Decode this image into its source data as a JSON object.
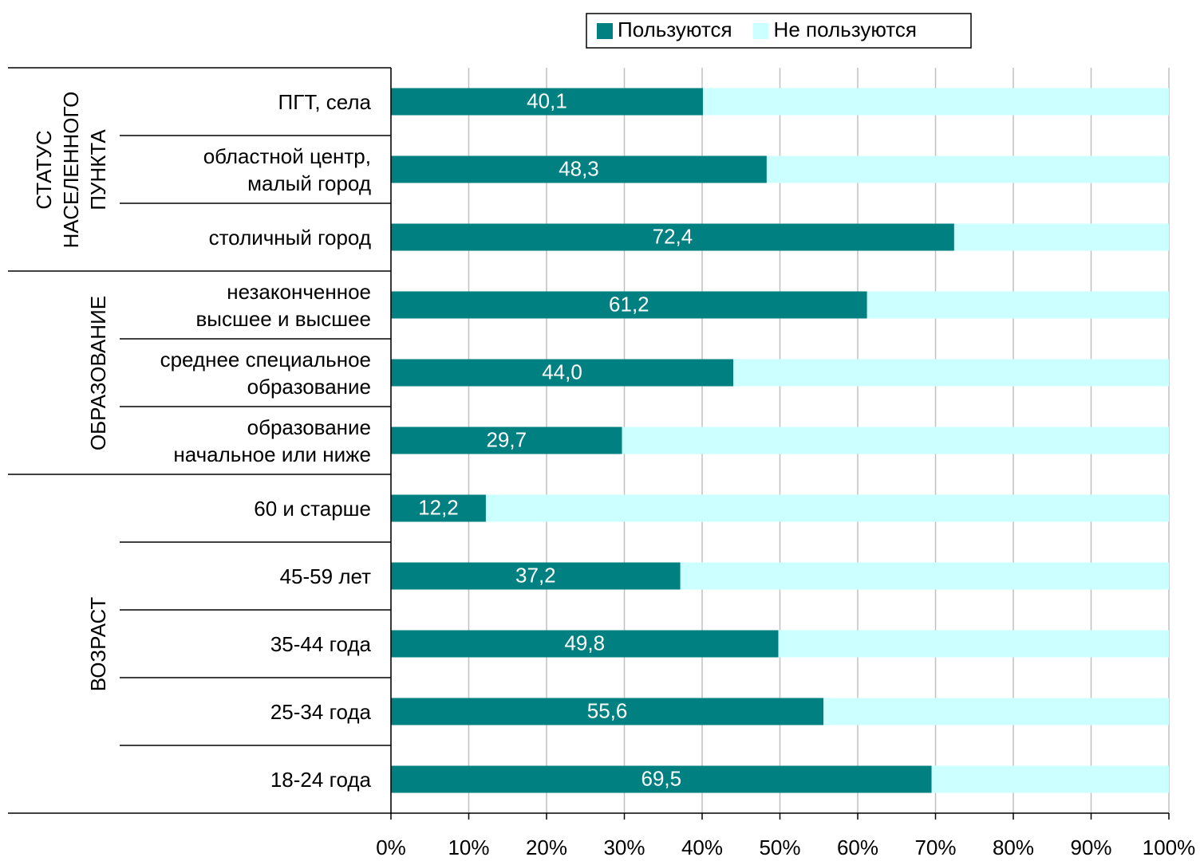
{
  "chart_data": {
    "type": "stacked-bar-horizontal",
    "groups": [
      {
        "label": "СТАТУС\nНАСЕЛЕННОГО\nПУНКТА",
        "categories": [
          "ПГТ, села",
          "областной центр,\nмалый город",
          "столичный город"
        ]
      },
      {
        "label": "ОБРАЗОВАНИЕ",
        "categories": [
          "незаконченное\nвысшее и высшее",
          "среднее специальное\nобразование",
          "образование\nначальное или ниже"
        ]
      },
      {
        "label": "ВОЗРАСТ",
        "categories": [
          "60 и старше",
          "45-59 лет",
          "35-44 года",
          "25-34 года",
          "18-24 года"
        ]
      }
    ],
    "series": [
      {
        "name": "Пользуются",
        "color": "#008080",
        "values": [
          40.1,
          48.3,
          72.4,
          61.2,
          44.0,
          29.7,
          12.2,
          37.2,
          49.8,
          55.6,
          69.5
        ],
        "value_labels": [
          "40,1",
          "48,3",
          "72,4",
          "61,2",
          "44,0",
          "29,7",
          "12,2",
          "37,2",
          "49,8",
          "55,6",
          "69,5"
        ]
      },
      {
        "name": "Не пользуются",
        "color": "#ccffff",
        "values": [
          59.9,
          51.7,
          27.6,
          38.8,
          56.0,
          70.3,
          87.8,
          62.8,
          50.2,
          44.4,
          30.5
        ]
      }
    ],
    "xlim": [
      0,
      100
    ],
    "xticks": [
      {
        "value": 0,
        "label": "0%"
      },
      {
        "value": 10,
        "label": "10%"
      },
      {
        "value": 20,
        "label": "20%"
      },
      {
        "value": 30,
        "label": "30%"
      },
      {
        "value": 40,
        "label": "40%"
      },
      {
        "value": 50,
        "label": "50%"
      },
      {
        "value": 60,
        "label": "60%"
      },
      {
        "value": 70,
        "label": "70%"
      },
      {
        "value": 80,
        "label": "80%"
      },
      {
        "value": 90,
        "label": "90%"
      },
      {
        "value": 100,
        "label": "100%"
      }
    ],
    "grid": true,
    "legend": "top"
  }
}
